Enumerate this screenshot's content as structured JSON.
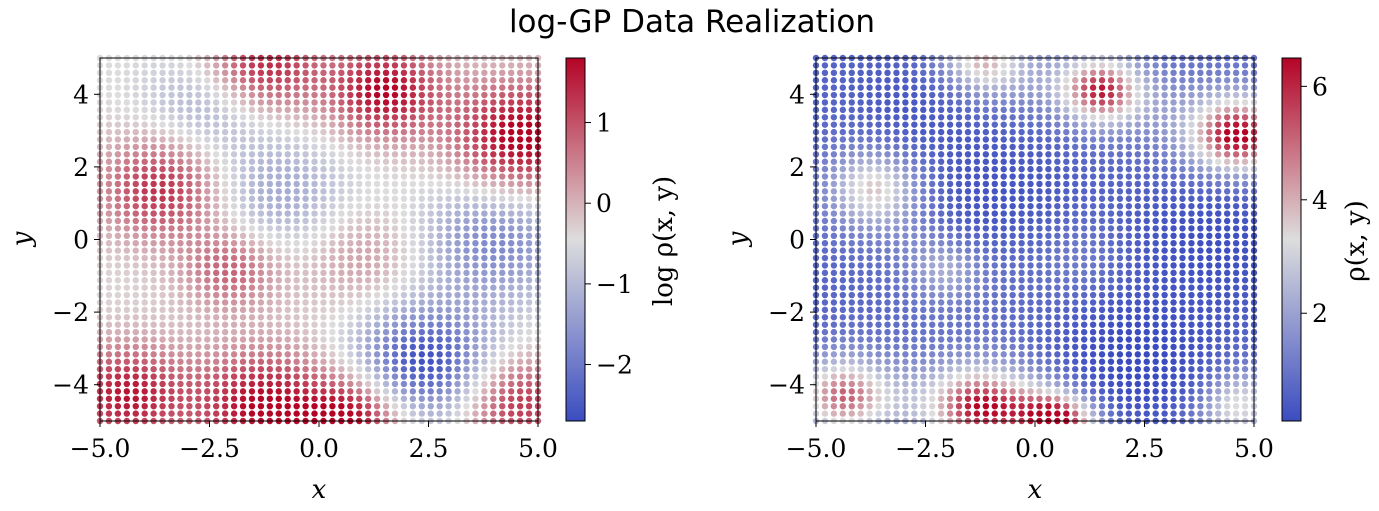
{
  "figure": {
    "title": "log-GP Data Realization",
    "colors": {
      "colormap": "coolwarm",
      "cmap_low": "#3b4cc0",
      "cmap_mid": "#dddddd",
      "cmap_high": "#b40426",
      "axis_frame": "#000000",
      "background": "#ffffff"
    }
  },
  "chart_data": [
    {
      "type": "scatter",
      "name": "log_density",
      "xlabel": "x",
      "ylabel": "y",
      "xlim": [
        -5.0,
        5.0
      ],
      "ylim": [
        -5.0,
        5.0
      ],
      "x_ticks": [
        "−5.0",
        "−2.5",
        "0.0",
        "2.5",
        "5.0"
      ],
      "x_tick_values": [
        -5.0,
        -2.5,
        0.0,
        2.5,
        5.0
      ],
      "y_ticks": [
        "−4",
        "−2",
        "0",
        "2",
        "4"
      ],
      "y_tick_values": [
        -4,
        -2,
        0,
        2,
        4
      ],
      "grid": false,
      "points": {
        "grid_n": 50,
        "x_range": [
          -5.0,
          5.0
        ],
        "y_range": [
          -5.0,
          5.0
        ]
      },
      "color_field": {
        "baseline": -0.4,
        "bumps": [
          {
            "cx": -1.3,
            "cy": 4.8,
            "amp": 2.0,
            "s": 0.95
          },
          {
            "cx": 1.5,
            "cy": 4.1,
            "amp": 2.2,
            "s": 0.9
          },
          {
            "cx": 4.6,
            "cy": 2.8,
            "amp": 2.4,
            "s": 1.1
          },
          {
            "cx": -3.6,
            "cy": 1.4,
            "amp": 1.8,
            "s": 1.0
          },
          {
            "cx": -2.0,
            "cy": -0.8,
            "amp": 1.3,
            "s": 0.8
          },
          {
            "cx": 2.4,
            "cy": -3.4,
            "amp": -2.3,
            "s": 1.1
          },
          {
            "cx": -1.3,
            "cy": -4.6,
            "amp": 2.2,
            "s": 1.1
          },
          {
            "cx": 0.8,
            "cy": -4.9,
            "amp": 2.2,
            "s": 0.8
          },
          {
            "cx": -4.4,
            "cy": -4.3,
            "amp": 2.0,
            "s": 1.0
          },
          {
            "cx": 4.5,
            "cy": -4.5,
            "amp": 1.8,
            "s": 0.9
          },
          {
            "cx": 4.0,
            "cy": 0.0,
            "amp": -1.4,
            "s": 1.2
          },
          {
            "cx": -1.0,
            "cy": 1.2,
            "amp": -0.9,
            "s": 1.2
          },
          {
            "cx": 1.0,
            "cy": -0.5,
            "amp": 0.7,
            "s": 1.0
          },
          {
            "cx": -2.5,
            "cy": 3.8,
            "amp": -0.9,
            "s": 1.0
          }
        ]
      },
      "colorbar": {
        "label": "log ρ(x, y)",
        "vmin": -2.7,
        "vmax": 1.8,
        "ticks": [
          "−2",
          "−1",
          "0",
          "1"
        ],
        "tick_values": [
          -2,
          -1,
          0,
          1
        ]
      }
    },
    {
      "type": "scatter",
      "name": "density",
      "xlabel": "x",
      "ylabel": "y",
      "xlim": [
        -5.0,
        5.0
      ],
      "ylim": [
        -5.0,
        5.0
      ],
      "x_ticks": [
        "−5.0",
        "−2.5",
        "0.0",
        "2.5",
        "5.0"
      ],
      "x_tick_values": [
        -5.0,
        -2.5,
        0.0,
        2.5,
        5.0
      ],
      "y_ticks": [
        "−4",
        "−2",
        "0",
        "2",
        "4"
      ],
      "y_tick_values": [
        -4,
        -2,
        0,
        2,
        4
      ],
      "grid": false,
      "points": {
        "grid_n": 50,
        "x_range": [
          -5.0,
          5.0
        ],
        "y_range": [
          -5.0,
          5.0
        ]
      },
      "transform": "exp",
      "colorbar": {
        "label": "ρ(x, y)",
        "vmin": 0.1,
        "vmax": 6.5,
        "ticks": [
          "2",
          "4",
          "6"
        ],
        "tick_values": [
          2,
          4,
          6
        ]
      }
    }
  ]
}
